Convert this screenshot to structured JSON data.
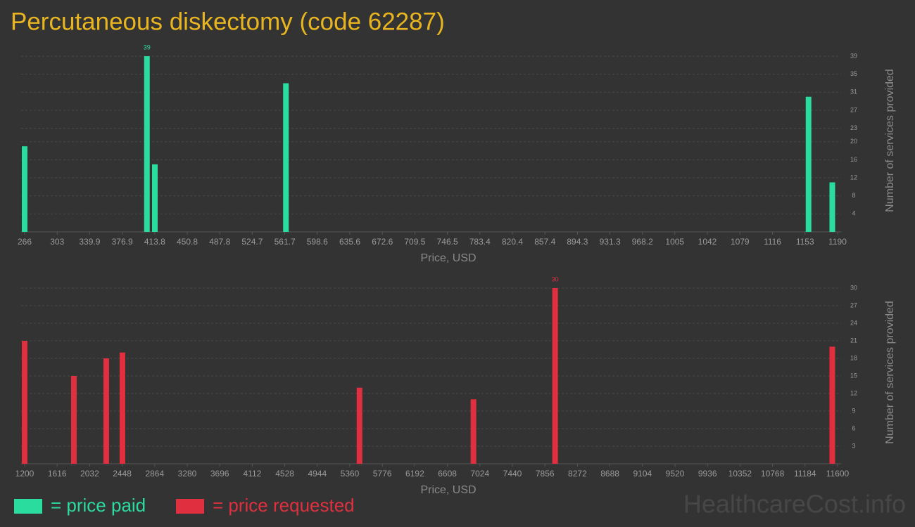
{
  "title": "Percutaneous diskectomy (code 62287)",
  "watermark": "HealthcareCost.info",
  "chart_data": [
    {
      "type": "bar",
      "x": [
        266,
        405,
        414,
        563,
        1157,
        1184
      ],
      "series": [
        {
          "name": "= price paid",
          "color": "#2bdc9f",
          "values": [
            19,
            39,
            15,
            33,
            30,
            11
          ]
        }
      ],
      "xlabel": "Price, USD",
      "ylabel": "Number of services provided",
      "xlim": [
        266,
        1190
      ],
      "xticks": [
        266,
        303,
        339.9,
        376.9,
        413.8,
        450.8,
        487.8,
        524.7,
        561.7,
        598.6,
        635.6,
        672.6,
        709.5,
        746.5,
        783.4,
        820.4,
        857.4,
        894.3,
        931.3,
        968.2,
        1005,
        1042,
        1079,
        1116,
        1153,
        1190
      ],
      "ylim": [
        0,
        39
      ],
      "yticks": [
        4,
        8,
        12,
        16,
        20,
        23,
        27,
        31,
        35,
        39
      ],
      "grid": true
    },
    {
      "type": "bar",
      "x": [
        1200,
        1830,
        2244,
        2451,
        5484,
        6942,
        7986,
        11532
      ],
      "series": [
        {
          "name": "= price requested",
          "color": "#e0303f",
          "values": [
            21,
            15,
            18,
            19,
            13,
            11,
            30,
            20
          ]
        }
      ],
      "xlabel": "Price, USD",
      "ylabel": "Number of services provided",
      "xlim": [
        1200,
        11600
      ],
      "xticks": [
        1200,
        1616,
        2032,
        2448,
        2864,
        3280,
        3696,
        4112,
        4528,
        4944,
        5360,
        5776,
        6192,
        6608,
        7024,
        7440,
        7856,
        8272,
        8688,
        9104,
        9520,
        9936,
        10352,
        10768,
        11184,
        11600
      ],
      "ylim": [
        0,
        30
      ],
      "yticks": [
        3,
        6,
        9,
        12,
        15,
        18,
        21,
        24,
        27,
        30
      ],
      "grid": true
    }
  ]
}
